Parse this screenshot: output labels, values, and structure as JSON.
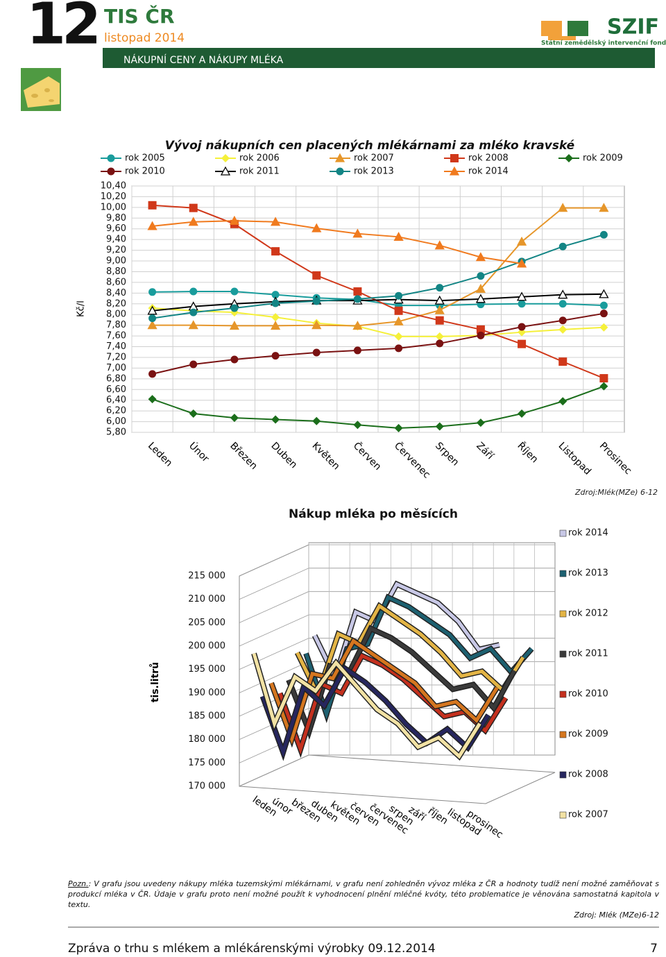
{
  "header": {
    "page_number": "12",
    "brand": "TIS ČR",
    "issue": "listopad 2014",
    "logo": "SZIF",
    "logo_subtitle": "Státní zemědělský intervenční fond",
    "section": "NÁKUPNÍ CENY A NÁKUPY MLÉKA"
  },
  "chart_data": [
    {
      "type": "line",
      "title": "Vývoj nákupních cen placených mlékárnami za mléko kravské",
      "y_label": "Kč/l",
      "source": "Zdroj:Mlék(MZe) 6-12",
      "categories": [
        "Leden",
        "Únor",
        "Březen",
        "Duben",
        "Květen",
        "Červen",
        "Červenec",
        "Srpen",
        "Září",
        "Říjen",
        "Listopad",
        "Prosinec"
      ],
      "ylim": [
        5.8,
        10.4
      ],
      "yticks": [
        {
          "value": 5.8,
          "label": "5,80"
        },
        {
          "value": 6.0,
          "label": "6,00"
        },
        {
          "value": 6.2,
          "label": "6,20"
        },
        {
          "value": 6.4,
          "label": "6,40"
        },
        {
          "value": 6.6,
          "label": "6,60"
        },
        {
          "value": 6.8,
          "label": "6,80"
        },
        {
          "value": 7.0,
          "label": "7,00"
        },
        {
          "value": 7.2,
          "label": "7,20"
        },
        {
          "value": 7.4,
          "label": "7,40"
        },
        {
          "value": 7.6,
          "label": "7,60"
        },
        {
          "value": 7.8,
          "label": "7,80"
        },
        {
          "value": 8.0,
          "label": "8,00"
        },
        {
          "value": 8.2,
          "label": "8,20"
        },
        {
          "value": 8.4,
          "label": "8,40"
        },
        {
          "value": 8.6,
          "label": "8,60"
        },
        {
          "value": 8.8,
          "label": "8,80"
        },
        {
          "value": 9.0,
          "label": "9,00"
        },
        {
          "value": 9.2,
          "label": "9,20"
        },
        {
          "value": 9.4,
          "label": "9,40"
        },
        {
          "value": 9.6,
          "label": "9,60"
        },
        {
          "value": 9.8,
          "label": "9,80"
        },
        {
          "value": 10.0,
          "label": "10,00"
        },
        {
          "value": 10.2,
          "label": "10,20"
        },
        {
          "value": 10.4,
          "label": "10,40"
        }
      ],
      "grid": true,
      "series": [
        {
          "name": "rok 2005",
          "color": "#199c9c",
          "marker": "circle",
          "values": [
            8.42,
            8.43,
            8.43,
            8.37,
            8.31,
            8.28,
            8.17,
            8.17,
            8.19,
            8.2,
            8.2,
            8.17
          ]
        },
        {
          "name": "rok 2006",
          "color": "#f5f03a",
          "marker": "diamond",
          "values": [
            8.12,
            8.07,
            8.04,
            7.95,
            7.84,
            7.78,
            7.59,
            7.59,
            7.61,
            7.67,
            7.72,
            7.76
          ]
        },
        {
          "name": "rok 2007",
          "color": "#e6962a",
          "marker": "triangle",
          "values": [
            7.8,
            7.8,
            7.79,
            7.79,
            7.8,
            7.79,
            7.87,
            8.08,
            8.48,
            9.36,
            9.99,
            9.99
          ]
        },
        {
          "name": "rok 2008",
          "color": "#d0381a",
          "marker": "square",
          "values": [
            10.04,
            9.99,
            9.69,
            9.18,
            8.73,
            8.43,
            8.07,
            7.89,
            7.72,
            7.45,
            7.12,
            6.81
          ]
        },
        {
          "name": "rok 2009",
          "color": "#1b6e1b",
          "marker": "diamond",
          "values": [
            6.42,
            6.15,
            6.07,
            6.04,
            6.01,
            5.94,
            5.88,
            5.91,
            5.98,
            6.15,
            6.38,
            6.66
          ]
        },
        {
          "name": "rok 2010",
          "color": "#7a1212",
          "marker": "circle",
          "values": [
            6.89,
            7.07,
            7.16,
            7.23,
            7.29,
            7.33,
            7.37,
            7.46,
            7.61,
            7.77,
            7.89,
            8.02
          ]
        },
        {
          "name": "rok 2011",
          "color": "#444444",
          "marker": "triangle-open",
          "values": [
            8.07,
            8.15,
            8.2,
            8.24,
            8.26,
            8.26,
            8.28,
            8.26,
            8.29,
            8.33,
            8.37,
            8.38
          ]
        },
        {
          "name": "rok 2013",
          "color": "#138585",
          "marker": "circle",
          "values": [
            7.93,
            8.04,
            8.12,
            8.21,
            8.25,
            8.29,
            8.35,
            8.5,
            8.72,
            8.99,
            9.27,
            9.49
          ]
        },
        {
          "name": "rok 2014",
          "color": "#f07a1e",
          "marker": "triangle",
          "values": [
            9.65,
            9.73,
            9.75,
            9.73,
            9.61,
            9.51,
            9.45,
            9.29,
            9.07,
            8.95,
            null,
            null
          ]
        }
      ]
    },
    {
      "type": "line3d",
      "title": "Nákup mléka po měsících",
      "y_label": "tis.litrů",
      "categories": [
        "leden",
        "únor",
        "březen",
        "duben",
        "květen",
        "červen",
        "červenec",
        "srpen",
        "září",
        "říjen",
        "listopad",
        "prosinec"
      ],
      "ylim": [
        170000,
        215000
      ],
      "yticks": [
        {
          "value": 170000,
          "label": "170 000"
        },
        {
          "value": 175000,
          "label": "175 000"
        },
        {
          "value": 180000,
          "label": "180 000"
        },
        {
          "value": 185000,
          "label": "185 000"
        },
        {
          "value": 190000,
          "label": "190 000"
        },
        {
          "value": 195000,
          "label": "195 000"
        },
        {
          "value": 200000,
          "label": "200 000"
        },
        {
          "value": 205000,
          "label": "205 000"
        },
        {
          "value": 210000,
          "label": "210 000"
        },
        {
          "value": 215000,
          "label": "215 000"
        }
      ],
      "grid": true,
      "series": [
        {
          "name": "rok 2014",
          "color": "#c8c8e6",
          "values": [
            196000,
            187000,
            201000,
            199000,
            207000,
            205000,
            203000,
            199000,
            193000,
            194000,
            null,
            null
          ]
        },
        {
          "name": "rok 2013",
          "color": "#1d6070",
          "values": [
            193000,
            180000,
            194000,
            195000,
            205000,
            203000,
            200000,
            197000,
            192000,
            194000,
            189000,
            194000
          ]
        },
        {
          "name": "rok 2012",
          "color": "#e3b445",
          "values": [
            194000,
            185000,
            198000,
            196000,
            204000,
            201000,
            198000,
            194000,
            189000,
            190000,
            186000,
            193000
          ]
        },
        {
          "name": "rok 2011",
          "color": "#3a3a3a",
          "values": [
            189000,
            178000,
            192000,
            191000,
            200000,
            198000,
            195000,
            191000,
            187000,
            188000,
            183000,
            191000
          ]
        },
        {
          "name": "rok 2010",
          "color": "#c4301e",
          "values": [
            187000,
            175000,
            189000,
            187000,
            195000,
            193000,
            190000,
            186000,
            182000,
            183000,
            179000,
            186000
          ]
        },
        {
          "name": "rok 2009",
          "color": "#d5761f",
          "values": [
            190000,
            178000,
            192000,
            191000,
            199000,
            196000,
            193000,
            190000,
            185000,
            186000,
            182000,
            189000
          ]
        },
        {
          "name": "rok 2008",
          "color": "#26265e",
          "values": [
            188000,
            176000,
            190000,
            186000,
            194000,
            191000,
            187000,
            182000,
            178000,
            181000,
            177000,
            184000
          ]
        },
        {
          "name": "rok 2007",
          "color": "#f2e2a4",
          "values": [
            198000,
            183000,
            193000,
            190000,
            196000,
            191000,
            186000,
            183000,
            178000,
            180000,
            176000,
            183000
          ]
        }
      ]
    }
  ],
  "note": {
    "label": "Pozn.",
    "text": ": V grafu jsou uvedeny nákupy mléka tuzemskými mlékárnami, v grafu není zohledněn vývoz mléka z ČR a hodnoty tudíž není možné zaměňovat s produkcí mléka v ČR. Údaje v grafu proto není možné použít k vyhodnocení plnění mléčné kvóty, této problematice je věnována samostatná kapitola v textu.",
    "source": "Zdroj: Mlék (MZe)6-12"
  },
  "footer": {
    "text": "Zpráva o trhu s mlékem a mlékárenskými výrobky 09.12.2014",
    "page": "7"
  }
}
